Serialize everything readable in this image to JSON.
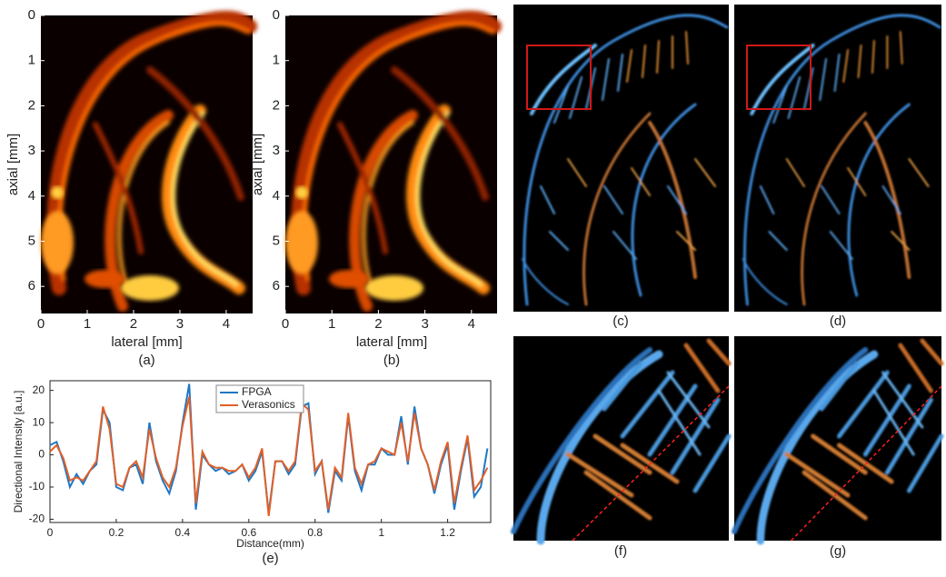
{
  "chart_data": [
    {
      "type": "image",
      "caption": "(a)",
      "x_label": "lateral [mm]",
      "y_label": "axial [mm]",
      "y_inverted": true,
      "xlim": [
        0,
        4.57
      ],
      "ylim": [
        0,
        6.6
      ],
      "xticks": [
        0,
        1,
        2,
        3,
        4
      ],
      "yticks": [
        0,
        1,
        2,
        3,
        4,
        5,
        6
      ]
    },
    {
      "type": "image",
      "caption": "(b)",
      "x_label": "lateral [mm]",
      "y_label": "axial [mm]",
      "y_inverted": true,
      "xlim": [
        0,
        4.57
      ],
      "ylim": [
        0,
        6.6
      ],
      "xticks": [
        0,
        1,
        2,
        3,
        4
      ],
      "yticks": [
        0,
        1,
        2,
        3,
        4,
        5,
        6
      ]
    },
    {
      "type": "line",
      "caption": "(e)",
      "x_label": "Distance(mm)",
      "y_label": "Directional Intensity [a.u.]",
      "x": [
        0,
        0.02,
        0.04,
        0.06,
        0.08,
        0.1,
        0.12,
        0.14,
        0.16,
        0.18,
        0.2,
        0.22,
        0.24,
        0.26,
        0.28,
        0.3,
        0.32,
        0.34,
        0.36,
        0.38,
        0.4,
        0.42,
        0.44,
        0.46,
        0.48,
        0.5,
        0.52,
        0.54,
        0.56,
        0.58,
        0.6,
        0.62,
        0.64,
        0.66,
        0.68,
        0.7,
        0.72,
        0.74,
        0.76,
        0.78,
        0.8,
        0.82,
        0.84,
        0.86,
        0.88,
        0.9,
        0.92,
        0.94,
        0.96,
        0.98,
        1.0,
        1.02,
        1.04,
        1.06,
        1.08,
        1.1,
        1.12,
        1.14,
        1.16,
        1.18,
        1.2,
        1.22,
        1.24,
        1.26,
        1.28,
        1.3,
        1.32
      ],
      "series": [
        {
          "name": "FPGA",
          "color": "#1f77c4",
          "values": [
            3,
            4,
            -2,
            -10,
            -6,
            -9,
            -5,
            -3,
            14,
            10,
            -10,
            -11,
            -4,
            -3,
            -9,
            10,
            -2,
            -8,
            -12,
            -5,
            10,
            22,
            -17,
            0,
            -3,
            -5,
            -4,
            -6,
            -5,
            -3,
            -8,
            -5,
            1,
            -18,
            -2,
            -2,
            -6,
            -3,
            15,
            16,
            -6,
            -2,
            -18,
            -5,
            -8,
            12,
            -5,
            -11,
            -3,
            -3,
            2,
            0,
            0,
            12,
            -3,
            15,
            2,
            -3,
            -12,
            -3,
            3,
            -17,
            -5,
            5,
            -13,
            -10,
            2
          ]
        },
        {
          "name": "Verasonics",
          "color": "#e0602a",
          "values": [
            1,
            3,
            -1,
            -8,
            -7,
            -8,
            -5,
            -2,
            15,
            8,
            -9,
            -10,
            -4,
            -2,
            -7,
            8,
            -1,
            -7,
            -10,
            -4,
            9,
            18,
            -15,
            1,
            -3,
            -4,
            -4,
            -5,
            -5,
            -3,
            -7,
            -4,
            2,
            -19,
            -2,
            -2,
            -5,
            -2,
            16,
            14,
            -5,
            -2,
            -17,
            -4,
            -7,
            13,
            -4,
            -9,
            -3,
            -2,
            2,
            1,
            0,
            10,
            -2,
            13,
            2,
            -3,
            -11,
            -2,
            4,
            -15,
            -4,
            6,
            -11,
            -8,
            -4
          ]
        }
      ],
      "xlim": [
        0,
        1.33
      ],
      "ylim": [
        -21,
        23
      ],
      "xticks": [
        0,
        0.2,
        0.4,
        0.6,
        0.8,
        1,
        1.2
      ],
      "yticks": [
        -20,
        -10,
        0,
        10,
        20
      ],
      "legend": "top"
    }
  ],
  "panels": [
    {
      "caption": "(c)"
    },
    {
      "caption": "(d)"
    },
    {
      "caption": "(f)"
    },
    {
      "caption": "(g)"
    }
  ]
}
